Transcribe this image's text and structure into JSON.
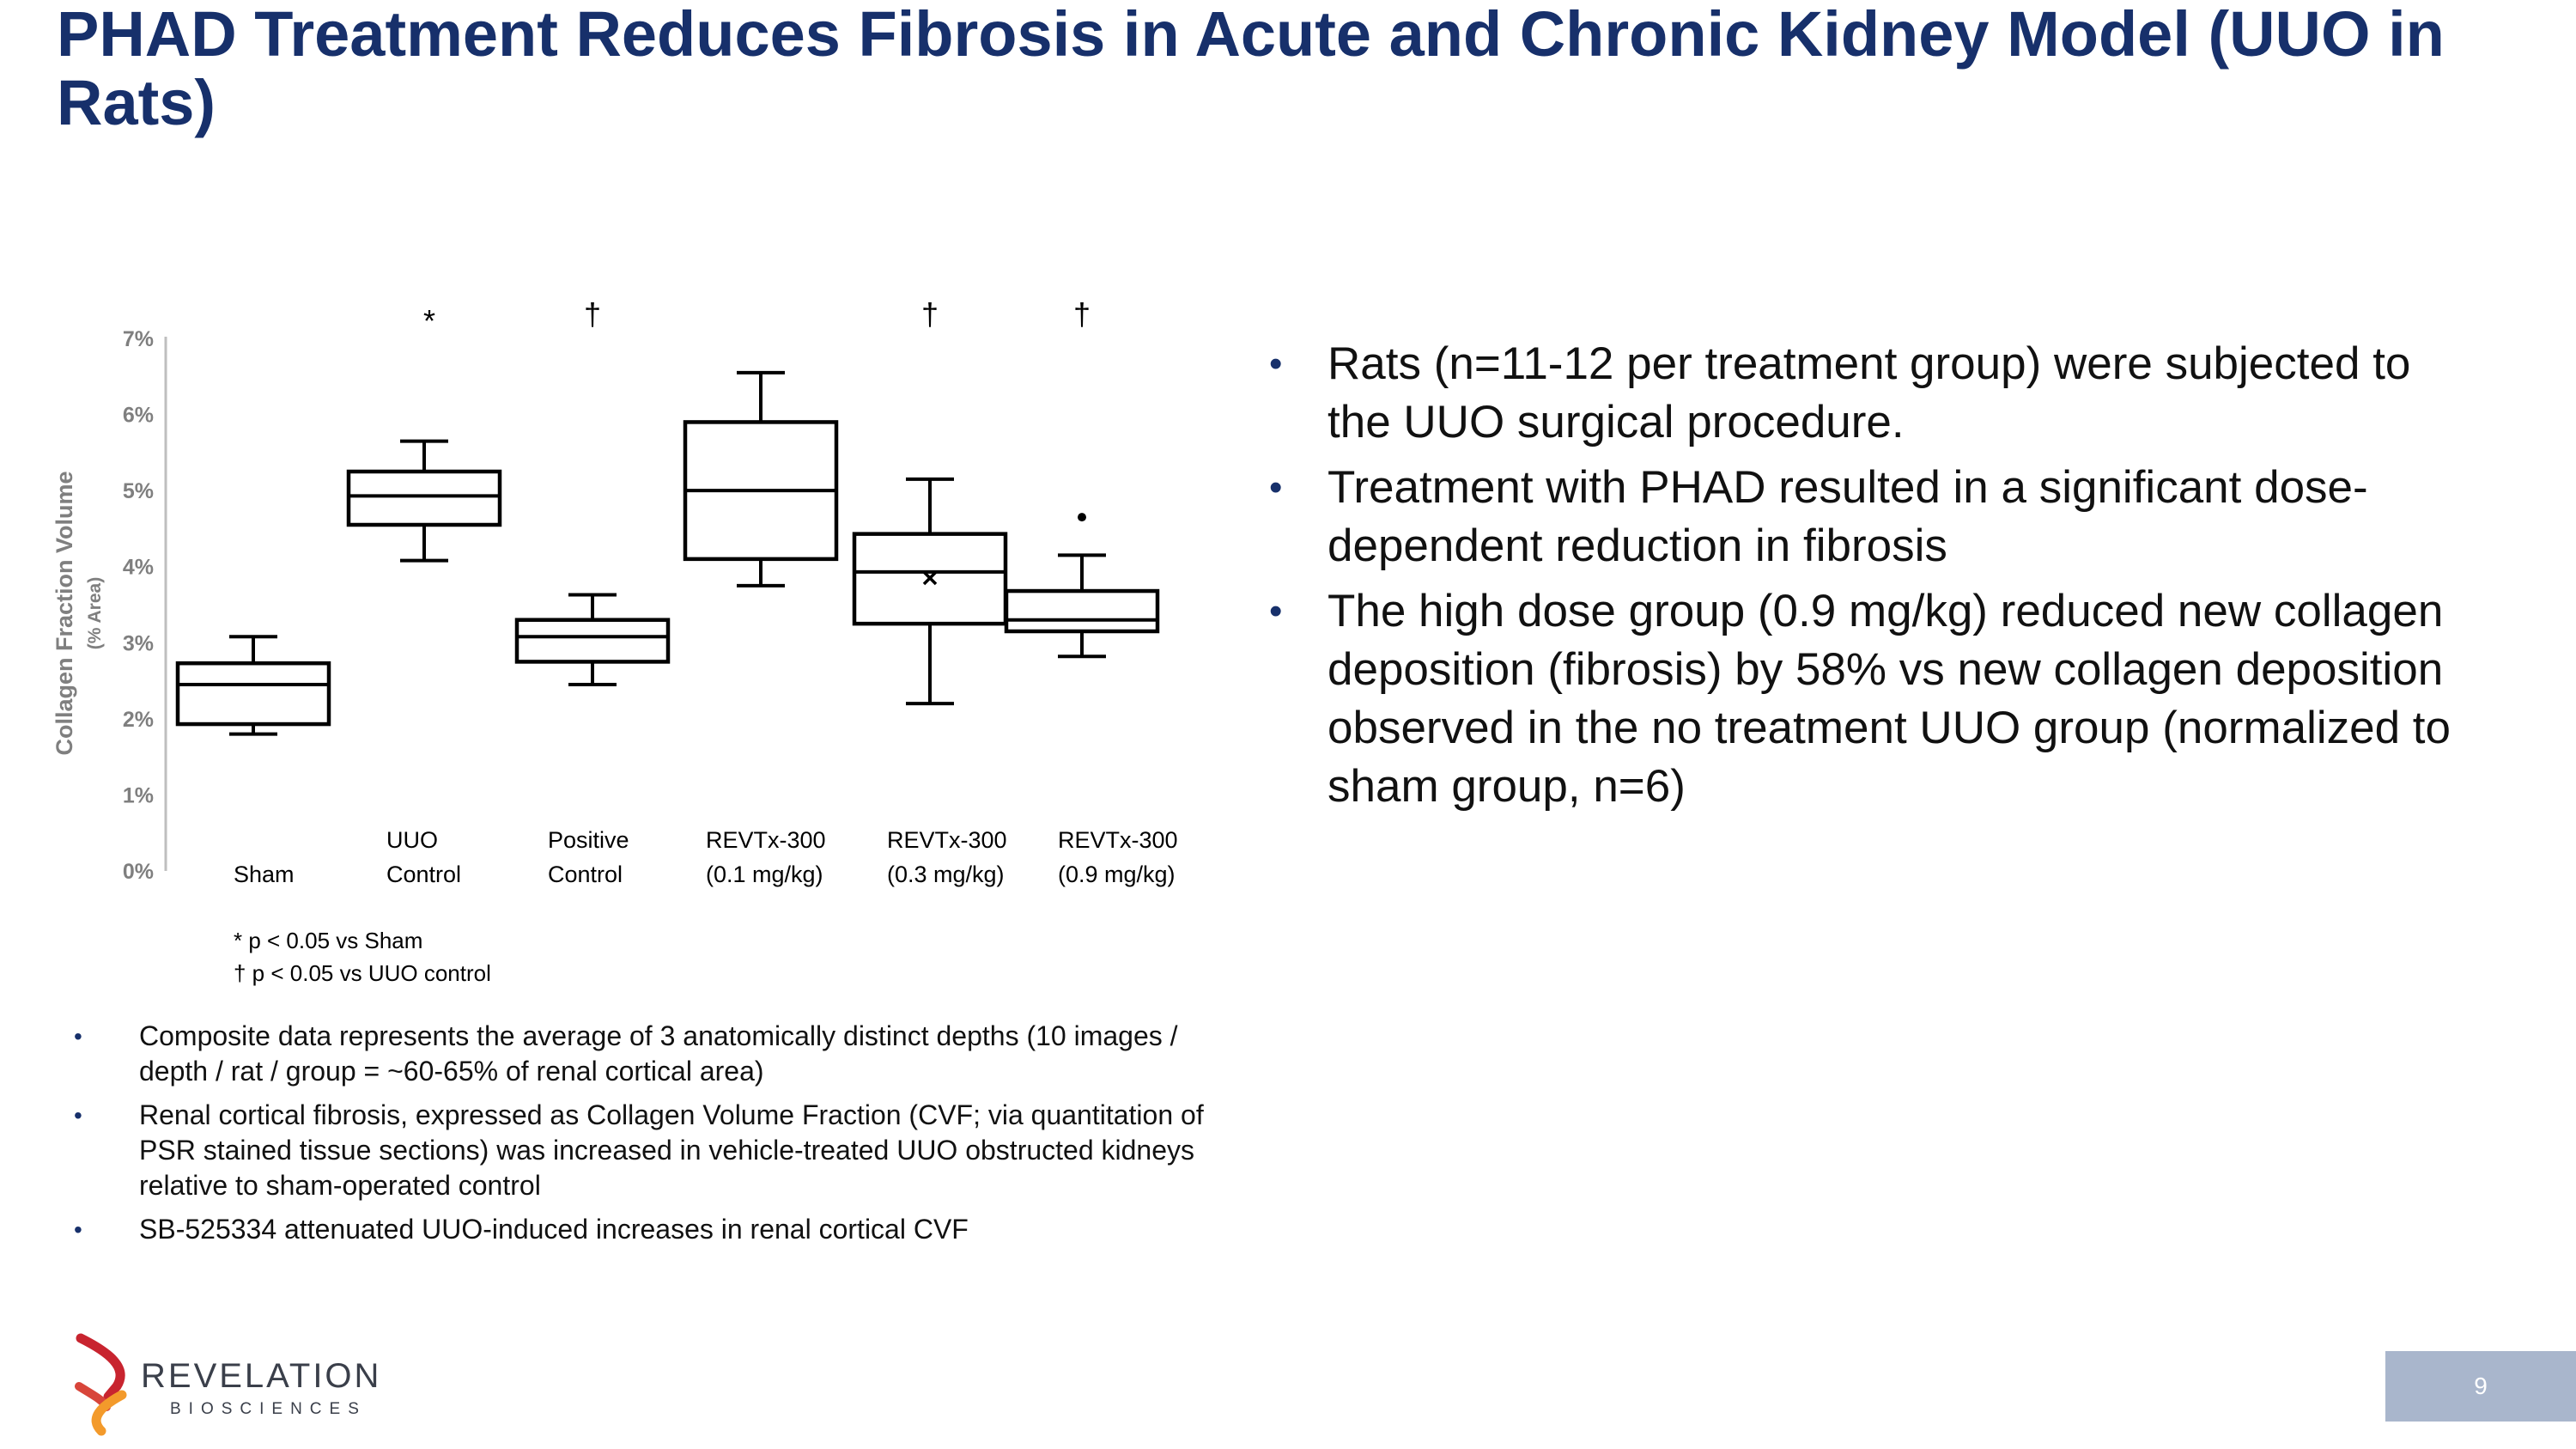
{
  "slide": {
    "title": "PHAD Treatment Reduces Fibrosis in Acute and Chronic Kidney Model (UUO in Rats)",
    "page_number": "9"
  },
  "colors": {
    "title": "#17306b",
    "bullet": "#17306b",
    "axis": "#bfbfbf",
    "axis_text": "#7f7f7f",
    "box": "#000000",
    "page_box": "#a9b6cc",
    "logo_red": "#c8242f",
    "logo_orange": "#f39a2b"
  },
  "chart_data": {
    "type": "box",
    "ylabel": "Collagen Fraction Volume",
    "ylabel_sub": "(% Area)",
    "ylim": [
      0,
      7
    ],
    "yticks": [
      "0%",
      "1%",
      "2%",
      "3%",
      "4%",
      "5%",
      "6%",
      "7%"
    ],
    "grid": false,
    "categories": [
      {
        "line1": "",
        "line2": "Sham"
      },
      {
        "line1": "UUO",
        "line2": "Control"
      },
      {
        "line1": "Positive",
        "line2": "Control"
      },
      {
        "line1": "REVTx-300",
        "line2": "(0.1 mg/kg)"
      },
      {
        "line1": "REVTx-300",
        "line2": "(0.3 mg/kg)"
      },
      {
        "line1": "REVTx-300",
        "line2": "(0.9 mg/kg)"
      }
    ],
    "boxes": [
      {
        "min": 1.8,
        "q1": 1.93,
        "median": 2.45,
        "q3": 2.73,
        "max": 3.08,
        "sig": "",
        "mean": null,
        "outliers": []
      },
      {
        "min": 4.08,
        "q1": 4.55,
        "median": 4.93,
        "q3": 5.25,
        "max": 5.65,
        "sig": "*",
        "mean": null,
        "outliers": []
      },
      {
        "min": 2.45,
        "q1": 2.75,
        "median": 3.08,
        "q3": 3.3,
        "max": 3.63,
        "sig": "†",
        "mean": null,
        "outliers": []
      },
      {
        "min": 3.75,
        "q1": 4.1,
        "median": 5.0,
        "q3": 5.9,
        "max": 6.55,
        "sig": "",
        "mean": null,
        "outliers": []
      },
      {
        "min": 2.2,
        "q1": 3.25,
        "median": 3.93,
        "q3": 4.43,
        "max": 5.15,
        "sig": "†",
        "mean": 3.85,
        "outliers": []
      },
      {
        "min": 2.82,
        "q1": 3.15,
        "median": 3.3,
        "q3": 3.68,
        "max": 4.15,
        "sig": "†",
        "mean": null,
        "outliers": [
          4.65
        ]
      }
    ],
    "footnotes": [
      "* p < 0.05 vs Sham",
      "† p < 0.05 vs UUO control"
    ]
  },
  "right_bullets": [
    "Rats (n=11-12 per treatment group) were subjected to the UUO surgical procedure.",
    "Treatment with PHAD resulted in a significant dose-dependent reduction in fibrosis",
    "The high dose group (0.9 mg/kg) reduced new collagen deposition (fibrosis) by 58% vs new collagen deposition observed in the no treatment UUO group (normalized to sham group, n=6)"
  ],
  "bottom_bullets": [
    "Composite data represents the average of 3 anatomically distinct depths (10 images / depth / rat / group = ~60-65% of renal cortical area)",
    "Renal cortical fibrosis, expressed as Collagen Volume Fraction (CVF; via quantitation of PSR stained tissue sections) was increased in vehicle-treated UUO obstructed kidneys relative to sham-operated control",
    "SB-525334 attenuated UUO-induced increases in renal cortical CVF"
  ],
  "bullet_char": "•",
  "logo": {
    "name": "REVELATION",
    "sub": "BIOSCIENCES"
  }
}
